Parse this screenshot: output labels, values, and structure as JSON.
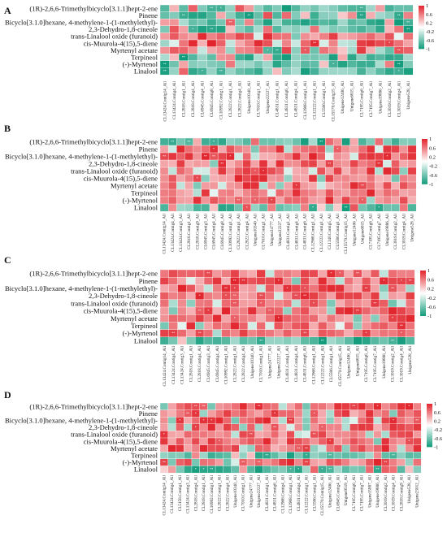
{
  "chart_data": [
    {
      "panel": "A",
      "type": "heatmap",
      "rows": [
        "(1R)-2,6,6-Trimethylbicyclo[3.1.1]hept-2-ene",
        "Pinene",
        "Bicyclo[3.1.0]hexane, 4-methylene-1-(1-methylethyl)-",
        "2,3-Dehydro-1,8-cineole",
        "trans-Linalool oxide (furanoid)",
        "cis-Muurola-4(15),5-diene",
        "Myrtenyl acetate",
        "Terpineol",
        "(-)-Myrtenol",
        "Linalool"
      ],
      "columns": [
        "CL13424.Contig14_All",
        "CL13424.Contig4_All",
        "CL2818.Contig1_All",
        "CL2818.Contig4_All",
        "CL6945.Contig4_All",
        "CL6945.Contig8_All",
        "CL10992.Contig1_All",
        "CL2822.Contig1_All",
        "CL2822.Contig4_All",
        "Unigene10340_All",
        "CL7010.Contig1_All",
        "Unigene22227_All",
        "CL4831.Contig1_All",
        "CL4831.Contig6_All",
        "CL4831.Contig4_All",
        "CL12968.Contig1_All",
        "CL12222.Contig1_All",
        "CL5586.Contig1_All",
        "CL15570.Contig15_All",
        "Unigene12406_All",
        "Unigene6815_All",
        "CL7195.Contig6_All",
        "CL7195.Contig7_All",
        "Unigene19886_All",
        "CL3019.Contig2_All",
        "CL3019.Contig4_All",
        "Unigene528_All"
      ],
      "row_profiles": [
        "neg",
        "neg",
        "neg",
        "neg",
        "pos",
        "pos",
        "mixed",
        "neg",
        "neg",
        "neg"
      ],
      "colorbar": {
        "ticks": [
          "1",
          "0.6",
          "0.2",
          "-0.2",
          "-0.6",
          "-1"
        ],
        "range": [
          -1,
          1
        ]
      }
    },
    {
      "panel": "B",
      "type": "heatmap",
      "rows": [
        "(1R)-2,6,6-Trimethylbicyclo[3.1.1]hept-2-ene",
        "Pinene",
        "Bicyclo[3.1.0]hexane, 4-methylene-1-(1-methylethyl)-",
        "2,3-Dehydro-1,8-cineole",
        "trans-Linalool oxide (furanoid)",
        "cis-Muurola-4(15),5-diene",
        "Myrtenyl acetate",
        "Terpineol",
        "(-)-Myrtenol",
        "Linalool"
      ],
      "columns": [
        "CL13424.Contig14_All",
        "CL13424.Contig4_All",
        "CL13424.Contig3_All",
        "CL2818.Contig1_All",
        "CL2818.Contig9_All",
        "CL6945.Contig3_All",
        "CL6945.Contig4_All",
        "CL6945.Contig8_All",
        "CL10992.Contig1_All",
        "CL2822.Contig1_All",
        "CL2822.Contig4_All",
        "Unigene10340_All",
        "CL7010.Contig1_All",
        "Unigene24777_All",
        "Unigene22227_All",
        "CL4831.Contig1_All",
        "CL4831.Contig4_All",
        "CL4831.Contig6_All",
        "CL12968.Contig1_All",
        "CL12222.Contig1_All",
        "CL1340.Contig5_All",
        "CL5586.Contig1_All",
        "CL15570.Contig15_All",
        "Unigene12406_All",
        "Unigene6815_All",
        "CL7195.Contig6_All",
        "CL7195.Contig7_All",
        "Unigene19886_All",
        "CL3019.Contig2_All",
        "CL3019.Contig4_All",
        "Unigene528_All"
      ],
      "row_profiles": [
        "neg",
        "pos",
        "pos",
        "pos",
        "pos",
        "pos",
        "pos",
        "pos",
        "pos",
        "neg"
      ],
      "colorbar": {
        "ticks": [
          "1",
          "0.6",
          "0.2",
          "-0.2",
          "-0.6",
          "-1"
        ],
        "range": [
          -1,
          1
        ]
      }
    },
    {
      "panel": "C",
      "type": "heatmap",
      "rows": [
        "(1R)-2,6,6-Trimethylbicyclo[3.1.1]hept-2-ene",
        "Pinene",
        "Bicyclo[3.1.0]hexane, 4-methylene-1-(1-methylethyl)-",
        "2,3-Dehydro-1,8-cineole",
        "trans-Linalool oxide (furanoid)",
        "cis-Muurola-4(15),5-diene",
        "Myrtenyl acetate",
        "Terpineol",
        "(-)-Myrtenol",
        "Linalool"
      ],
      "columns": [
        "CL13424.Contig14_All",
        "CL13424.Contig4_All",
        "CL13424.Contig3_All",
        "CL2818.Contig1_All",
        "CL2818.Contig4_All",
        "CL6945.Contig3_All",
        "CL6945.Contig4_All",
        "CL10992.Contig1_All",
        "CL2822.Contig1_All",
        "CL2822.Contig4_All",
        "Unigene10340_All",
        "CL7010.Contig1_All",
        "Unigene24777_All",
        "Unigene22227_All",
        "CL4831.Contig1_All",
        "CL4831.Contig4_All",
        "CL4831.Contig6_All",
        "CL12968.Contig1_All",
        "CL12222.Contig1_All",
        "CL5586.Contig1_All",
        "CL15570.Contig15_All",
        "Unigene12406_All",
        "Unigene6815_All",
        "CL7195.Contig6_All",
        "CL7195.Contig7_All",
        "Unigene19886_All",
        "CL3019.Contig2_All",
        "CL3019.Contig4_All",
        "Unigene528_All"
      ],
      "row_profiles": [
        "pos",
        "pos",
        "pos",
        "pos",
        "pos",
        "pos",
        "pos",
        "pos",
        "pos",
        "neg"
      ],
      "colorbar": {
        "ticks": [
          "1",
          "0.6",
          "0.2",
          "-0.2",
          "-0.6",
          "-1"
        ],
        "range": [
          -1,
          1
        ]
      }
    },
    {
      "panel": "D",
      "type": "heatmap",
      "rows": [
        "(1R)-2,6,6-Trimethylbicyclo[3.1.1]hept-2-ene",
        "Pinene",
        "Bicyclo[3.1.0]hexane, 4-methylene-1-(1-methylethyl)-",
        "2,3-Dehydro-1,8-cineole",
        "trans-Linalool oxide (furanoid)",
        "cis-Muurola-4(15),5-diene",
        "Myrtenyl acetate",
        "Terpineol",
        "(-)-Myrtenol",
        "Linalool"
      ],
      "columns": [
        "CL13424.Contig14_All",
        "CL13424.Contig4_All",
        "CL5158.Contig1_All",
        "CL13424.Contig3_All",
        "CL2818.Contig4_All",
        "CL2818.Contig1_All",
        "CL10992.Contig1_All",
        "CL2822.Contig1_All",
        "CL2822.Contig4_All",
        "Unigene10340_All",
        "CL7010.Contig1_All",
        "Unigene24777_All",
        "Unigene22227_All",
        "CL4831.Contig1_All",
        "CL4831.Contig6_All",
        "CL12968.Contig4_All",
        "CL12968.Contig1_All",
        "CL4831.Contig4_All",
        "CL12222.Contig1_All",
        "CL5586.Contig1_All",
        "CL15570.Contig15_All",
        "Unigene12406_All",
        "CL6945.Contig4_All",
        "Unigene9519_All",
        "CL7195.Contig6_All",
        "CL7195.Contig7_All",
        "Unigene15887_All",
        "Unigene19886_All",
        "CL3019.Contig2_All",
        "CL3019.Contig4_All",
        "CL2818.Contig9_All",
        "Unigene528_All",
        "Unigene23012_All"
      ],
      "row_profiles": [
        "pos",
        "pos",
        "pos",
        "pos",
        "pos",
        "pos",
        "pos",
        "neg",
        "pos",
        "neg"
      ],
      "colorbar": {
        "ticks": [
          "1",
          "0.6",
          "0.2",
          "-0.2",
          "-0.6",
          "-1"
        ],
        "range": [
          -1,
          1
        ]
      }
    }
  ]
}
